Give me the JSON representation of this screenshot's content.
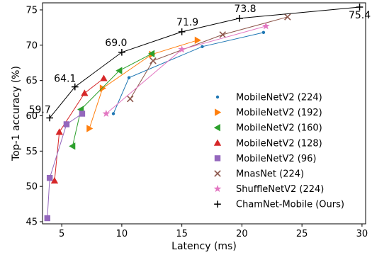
{
  "chart_data": {
    "type": "scatter",
    "xlabel": "Latency (ms)",
    "ylabel": "Top-1 accuracy (%)",
    "xlim": [
      3.4,
      30.3
    ],
    "ylim": [
      44.7,
      76.0
    ],
    "xticks": [
      5,
      10,
      15,
      20,
      25,
      30
    ],
    "yticks": [
      45,
      50,
      55,
      60,
      65,
      70,
      75
    ],
    "grid": false,
    "legend_position": "lower-right",
    "series": [
      {
        "name": "MobileNetV2 (224)",
        "marker": "dot",
        "color": "#1f77b4",
        "connected": true,
        "x": [
          9.3,
          10.6,
          16.7,
          21.8
        ],
        "y": [
          60.3,
          65.4,
          69.8,
          71.8
        ]
      },
      {
        "name": "MobileNetV2 (192)",
        "marker": "triangle-right",
        "color": "#ff7f0e",
        "connected": true,
        "x": [
          7.3,
          8.4,
          12.5,
          16.3
        ],
        "y": [
          58.2,
          63.9,
          68.7,
          70.7
        ]
      },
      {
        "name": "MobileNetV2 (160)",
        "marker": "triangle-left",
        "color": "#2ca02c",
        "connected": true,
        "x": [
          5.9,
          6.6,
          9.8,
          12.5
        ],
        "y": [
          55.7,
          60.9,
          66.4,
          68.8
        ]
      },
      {
        "name": "MobileNetV2 (128)",
        "marker": "triangle-up",
        "color": "#d62728",
        "connected": true,
        "x": [
          4.4,
          4.8,
          6.9,
          8.5
        ],
        "y": [
          50.8,
          57.7,
          63.2,
          65.3
        ]
      },
      {
        "name": "MobileNetV2 (96)",
        "marker": "square",
        "color": "#9467bd",
        "connected": true,
        "x": [
          3.8,
          4.0,
          5.4,
          6.7
        ],
        "y": [
          45.5,
          51.2,
          58.8,
          60.3
        ]
      },
      {
        "name": "MnasNet (224)",
        "marker": "x",
        "color": "#8c564b",
        "connected": true,
        "x": [
          10.7,
          12.6,
          18.4,
          23.8
        ],
        "y": [
          62.4,
          67.8,
          71.5,
          74.0
        ]
      },
      {
        "name": "ShuffleNetV2 (224)",
        "marker": "star",
        "color": "#e377c2",
        "connected": true,
        "x": [
          8.7,
          15.0,
          22.0
        ],
        "y": [
          60.3,
          69.4,
          72.7
        ]
      },
      {
        "name": "ChamNet-Mobile (Ours)",
        "marker": "plus",
        "color": "#000000",
        "connected": true,
        "x": [
          4.0,
          6.1,
          10.0,
          15.0,
          19.8,
          29.8
        ],
        "y": [
          59.7,
          64.1,
          69.0,
          71.9,
          73.8,
          75.4
        ]
      }
    ],
    "annotations": [
      {
        "text": "59.7",
        "x": 4.0,
        "y": 59.7
      },
      {
        "text": "64.1",
        "x": 6.1,
        "y": 64.1
      },
      {
        "text": "69.0",
        "x": 10.0,
        "y": 69.0
      },
      {
        "text": "71.9",
        "x": 15.0,
        "y": 71.9
      },
      {
        "text": "73.8",
        "x": 19.8,
        "y": 73.8
      },
      {
        "text": "75.4",
        "x": 29.8,
        "y": 75.4
      }
    ]
  }
}
